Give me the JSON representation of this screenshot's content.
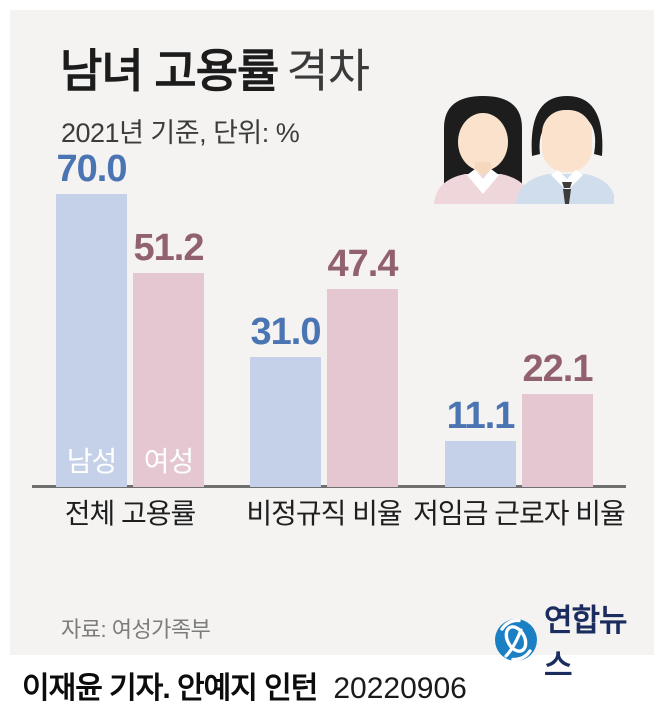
{
  "page": {
    "background": "#ffffff",
    "card_background": "#f4f3f2"
  },
  "header": {
    "title_bold": "남녀 고용률",
    "title_light": "격차",
    "subtitle": "2021년 기준, 단위: %"
  },
  "icons": {
    "people": "woman-and-man-office-workers",
    "logo": "yonhap-news-globe"
  },
  "chart_data": {
    "type": "bar",
    "title": "남녀 고용률 격차",
    "subtitle": "2021년 기준, 단위: %",
    "unit": "%",
    "categories": [
      "전체 고용률",
      "비정규직 비율",
      "저임금 근로자 비율"
    ],
    "series": [
      {
        "name": "남성",
        "values": [
          70.0,
          31.0,
          11.1
        ],
        "bar_color": "#c5d1e8",
        "value_color": "#4b74b3"
      },
      {
        "name": "여성",
        "values": [
          51.2,
          47.4,
          22.1
        ],
        "bar_color": "#e4c7d1",
        "value_color": "#92616f"
      }
    ],
    "ylim": [
      0,
      75
    ],
    "grid": false,
    "legend_position": "inside-first-bar-pair",
    "baseline_color": "#6f6f6f"
  },
  "footer": {
    "source": "자료: 여성가족부",
    "logo_text": "연합뉴스"
  },
  "byline": {
    "credit": "이재윤 기자. 안예지 인턴",
    "date": "20220906"
  }
}
